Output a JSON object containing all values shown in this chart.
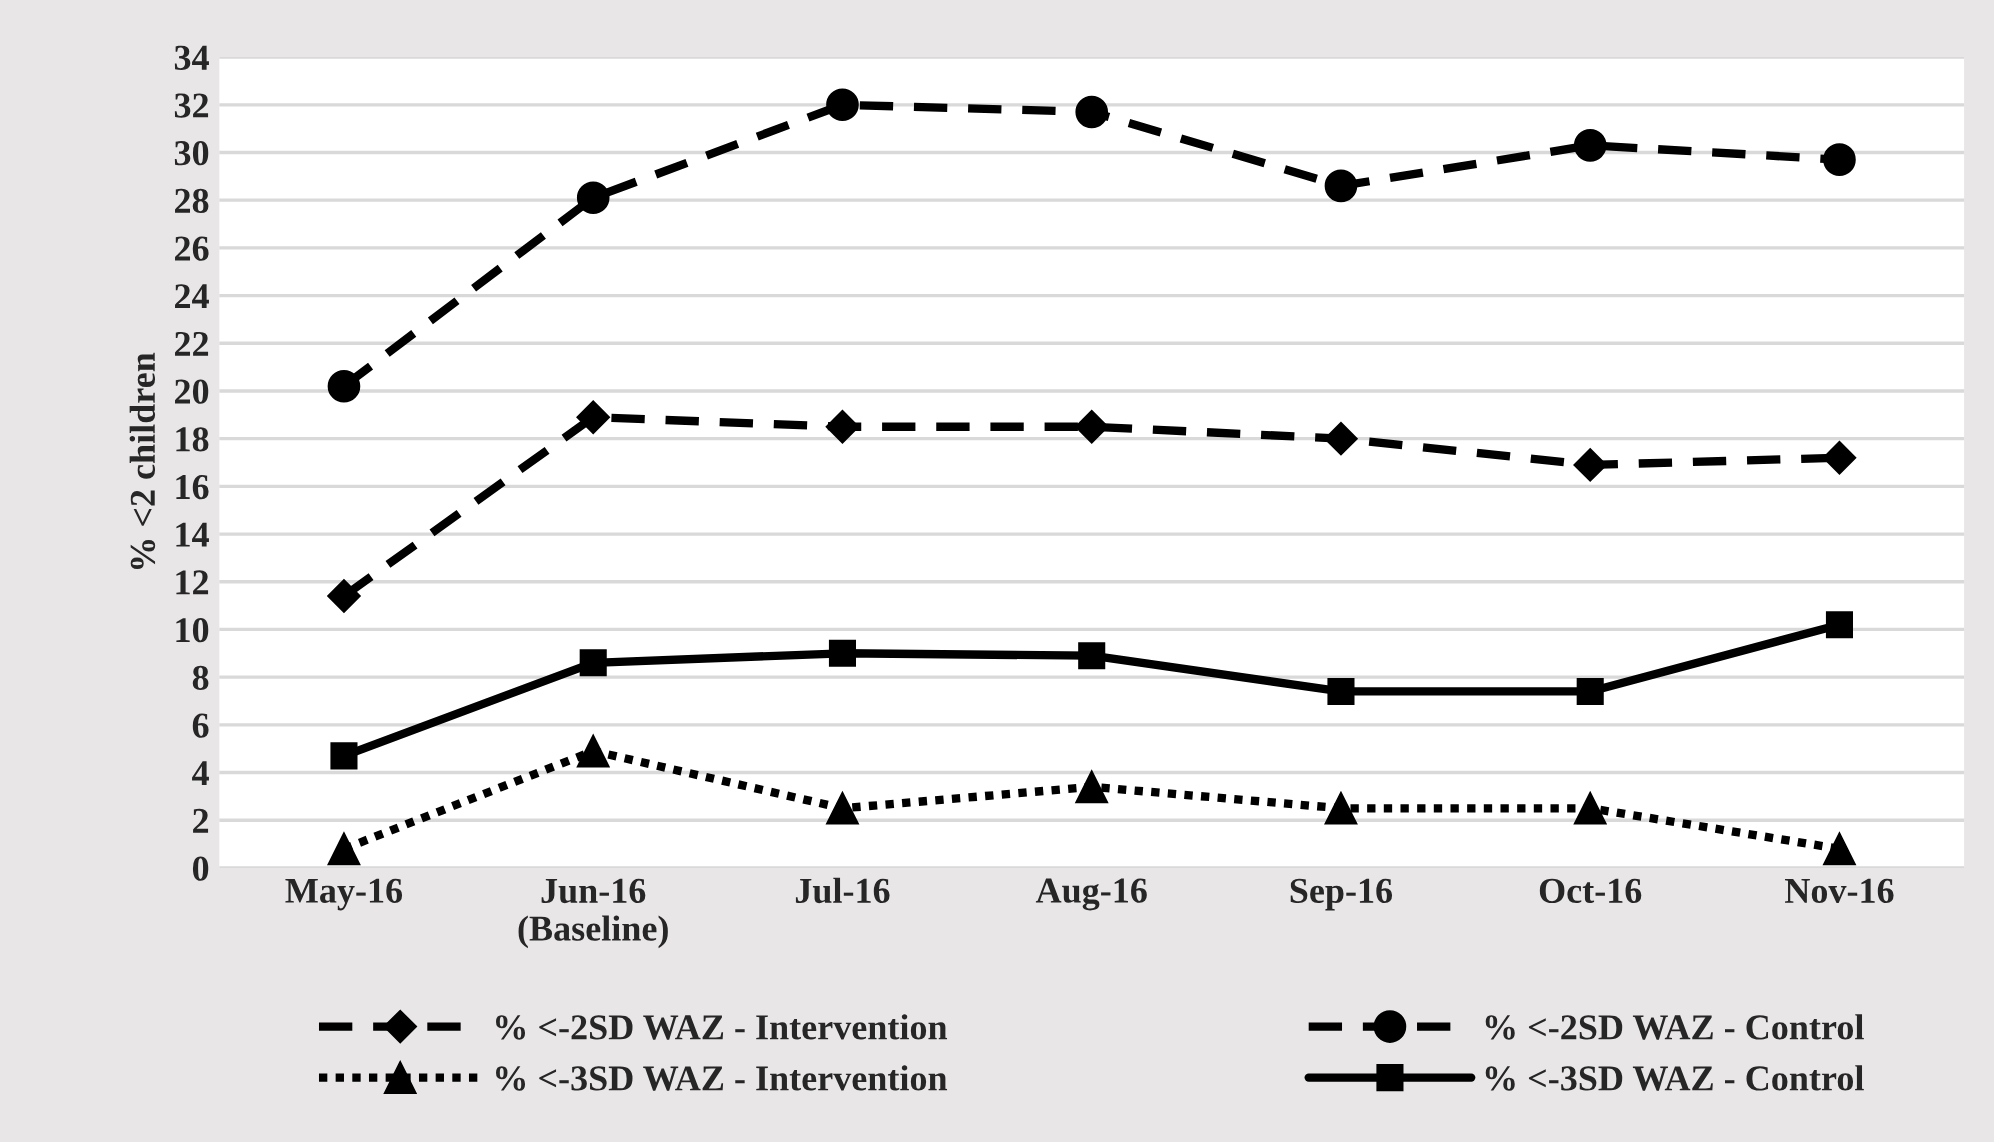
{
  "chart_data": {
    "type": "line",
    "ylabel": "% <2 children",
    "categories": [
      "May-16",
      "Jun-16\n(Baseline)",
      "Jul-16",
      "Aug-16",
      "Sep-16",
      "Oct-16",
      "Nov-16"
    ],
    "series": [
      {
        "name": "% <-2SD WAZ - Intervention",
        "color": "#000000",
        "marker": "diamond",
        "line_style": "dashed",
        "values": [
          11.4,
          18.9,
          18.5,
          18.5,
          18.0,
          16.9,
          17.2
        ]
      },
      {
        "name": "% <-2SD WAZ - Control",
        "color": "#000000",
        "marker": "circle",
        "line_style": "dashed",
        "values": [
          20.2,
          28.1,
          32.0,
          31.7,
          28.6,
          30.3,
          29.7
        ]
      },
      {
        "name": "% <-3SD WAZ - Intervention",
        "color": "#000000",
        "marker": "triangle",
        "line_style": "dotted",
        "values": [
          0.8,
          4.9,
          2.5,
          3.4,
          2.5,
          2.5,
          0.8
        ]
      },
      {
        "name": "% <-3SD WAZ - Control",
        "color": "#000000",
        "marker": "square",
        "line_style": "solid",
        "values": [
          4.7,
          8.6,
          9.0,
          8.9,
          7.4,
          7.4,
          10.2
        ]
      }
    ],
    "ylim": [
      0,
      34
    ],
    "yticks": [
      0,
      2,
      4,
      6,
      8,
      10,
      12,
      14,
      16,
      18,
      20,
      22,
      24,
      26,
      28,
      30,
      32,
      34
    ],
    "grid": "y",
    "legend": "bottom"
  }
}
